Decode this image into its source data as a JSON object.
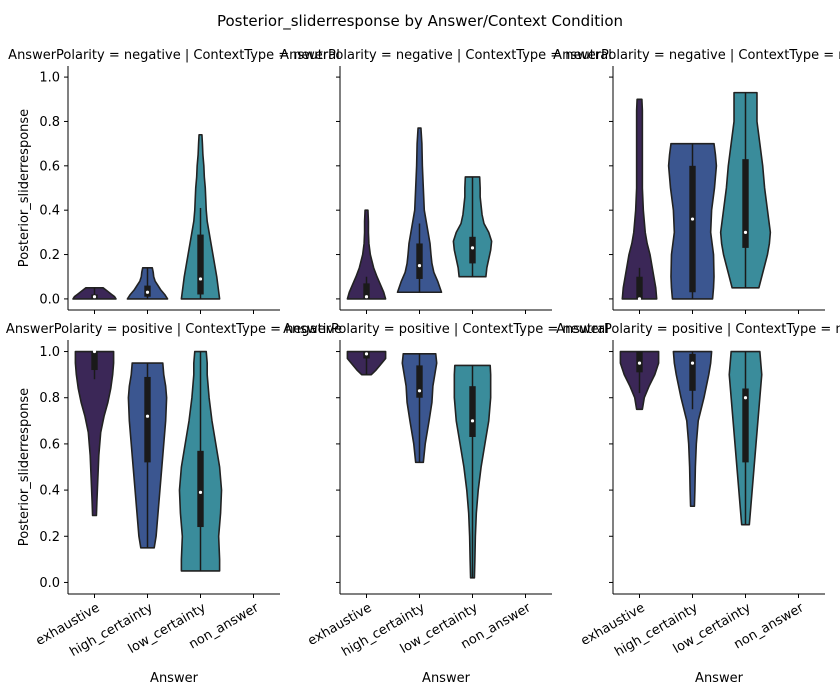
{
  "figure": {
    "suptitle": "Posterior_sliderresponse by Answer/Context Condition"
  },
  "categories": [
    "exhaustive",
    "high_certainty",
    "low_certainty",
    "non_answer"
  ],
  "colors": {
    "exhaustive": "#3b2757",
    "high_certainty": "#3b5690",
    "low_certainty": "#3a8c9b",
    "edge": "#222222",
    "box": "#1a1a1a"
  },
  "axes": {
    "ylabel": "Posterior_sliderresponse",
    "xlabel": "Answer",
    "yticks": [
      "0.0",
      "0.2",
      "0.4",
      "0.6",
      "0.8",
      "1.0"
    ],
    "ylim": [
      -0.05,
      1.05
    ]
  },
  "chart_data": [
    {
      "type": "violin",
      "title": "AnswerPolarity = negative | ContextType = neutral",
      "violins": [
        {
          "category": "exhaustive",
          "min": 0.0,
          "max": 0.05,
          "q1": 0.0,
          "median": 0.01,
          "q3": 0.02,
          "profile": [
            [
              0.0,
              0.45
            ],
            [
              0.01,
              0.42
            ],
            [
              0.02,
              0.36
            ],
            [
              0.03,
              0.3
            ],
            [
              0.04,
              0.24
            ],
            [
              0.05,
              0.18
            ]
          ]
        },
        {
          "category": "high_certainty",
          "min": 0.0,
          "max": 0.14,
          "q1": 0.01,
          "median": 0.03,
          "q3": 0.06,
          "profile": [
            [
              0.0,
              0.42
            ],
            [
              0.02,
              0.36
            ],
            [
              0.04,
              0.28
            ],
            [
              0.06,
              0.22
            ],
            [
              0.08,
              0.16
            ],
            [
              0.1,
              0.13
            ],
            [
              0.12,
              0.12
            ],
            [
              0.14,
              0.1
            ]
          ]
        },
        {
          "category": "low_certainty",
          "min": 0.0,
          "max": 0.74,
          "q1": 0.02,
          "median": 0.09,
          "q3": 0.29,
          "whisker": [
            0.0,
            0.41
          ],
          "profile": [
            [
              0.0,
              0.4
            ],
            [
              0.05,
              0.37
            ],
            [
              0.1,
              0.34
            ],
            [
              0.15,
              0.3
            ],
            [
              0.2,
              0.26
            ],
            [
              0.25,
              0.22
            ],
            [
              0.3,
              0.18
            ],
            [
              0.35,
              0.14
            ],
            [
              0.4,
              0.12
            ],
            [
              0.45,
              0.11
            ],
            [
              0.5,
              0.1
            ],
            [
              0.55,
              0.08
            ],
            [
              0.6,
              0.07
            ],
            [
              0.65,
              0.05
            ],
            [
              0.7,
              0.04
            ],
            [
              0.74,
              0.03
            ]
          ]
        }
      ]
    },
    {
      "type": "violin",
      "title": "AnswerPolarity = negative | ContextType = neutral",
      "violins": [
        {
          "category": "exhaustive",
          "min": 0.0,
          "max": 0.4,
          "q1": 0.0,
          "median": 0.01,
          "q3": 0.07,
          "whisker": [
            0.0,
            0.1
          ],
          "profile": [
            [
              0.0,
              0.4
            ],
            [
              0.03,
              0.36
            ],
            [
              0.06,
              0.3
            ],
            [
              0.1,
              0.22
            ],
            [
              0.14,
              0.15
            ],
            [
              0.2,
              0.08
            ],
            [
              0.25,
              0.05
            ],
            [
              0.3,
              0.04
            ],
            [
              0.35,
              0.04
            ],
            [
              0.4,
              0.03
            ]
          ]
        },
        {
          "category": "high_certainty",
          "min": 0.03,
          "max": 0.77,
          "q1": 0.09,
          "median": 0.15,
          "q3": 0.25,
          "whisker": [
            0.03,
            0.34
          ],
          "profile": [
            [
              0.03,
              0.46
            ],
            [
              0.08,
              0.38
            ],
            [
              0.12,
              0.3
            ],
            [
              0.16,
              0.26
            ],
            [
              0.2,
              0.24
            ],
            [
              0.25,
              0.22
            ],
            [
              0.3,
              0.18
            ],
            [
              0.35,
              0.14
            ],
            [
              0.4,
              0.1
            ],
            [
              0.5,
              0.08
            ],
            [
              0.6,
              0.06
            ],
            [
              0.7,
              0.05
            ],
            [
              0.77,
              0.03
            ]
          ]
        },
        {
          "category": "low_certainty",
          "min": 0.1,
          "max": 0.55,
          "q1": 0.16,
          "median": 0.23,
          "q3": 0.28,
          "profile": [
            [
              0.1,
              0.28
            ],
            [
              0.14,
              0.3
            ],
            [
              0.18,
              0.34
            ],
            [
              0.22,
              0.38
            ],
            [
              0.26,
              0.4
            ],
            [
              0.3,
              0.34
            ],
            [
              0.34,
              0.24
            ],
            [
              0.38,
              0.2
            ],
            [
              0.42,
              0.18
            ],
            [
              0.46,
              0.16
            ],
            [
              0.5,
              0.16
            ],
            [
              0.55,
              0.15
            ]
          ]
        }
      ]
    },
    {
      "type": "violin",
      "title": "AnswerPolarity = negative | ContextType = neutral",
      "violins": [
        {
          "category": "exhaustive",
          "min": 0.0,
          "max": 0.9,
          "q1": 0.0,
          "median": 0.0,
          "q3": 0.1,
          "whisker": [
            0.0,
            0.14
          ],
          "profile": [
            [
              0.0,
              0.36
            ],
            [
              0.05,
              0.34
            ],
            [
              0.1,
              0.3
            ],
            [
              0.15,
              0.26
            ],
            [
              0.2,
              0.22
            ],
            [
              0.25,
              0.16
            ],
            [
              0.3,
              0.12
            ],
            [
              0.4,
              0.08
            ],
            [
              0.5,
              0.06
            ],
            [
              0.6,
              0.06
            ],
            [
              0.7,
              0.06
            ],
            [
              0.8,
              0.06
            ],
            [
              0.85,
              0.06
            ],
            [
              0.9,
              0.05
            ]
          ]
        },
        {
          "category": "high_certainty",
          "min": 0.0,
          "max": 0.7,
          "q1": 0.03,
          "median": 0.36,
          "q3": 0.6,
          "profile": [
            [
              0.0,
              0.42
            ],
            [
              0.05,
              0.44
            ],
            [
              0.1,
              0.45
            ],
            [
              0.2,
              0.44
            ],
            [
              0.3,
              0.38
            ],
            [
              0.4,
              0.4
            ],
            [
              0.5,
              0.46
            ],
            [
              0.6,
              0.5
            ],
            [
              0.65,
              0.48
            ],
            [
              0.7,
              0.45
            ]
          ]
        },
        {
          "category": "low_certainty",
          "min": 0.05,
          "max": 0.93,
          "q1": 0.23,
          "median": 0.3,
          "q3": 0.63,
          "profile": [
            [
              0.05,
              0.28
            ],
            [
              0.1,
              0.34
            ],
            [
              0.15,
              0.4
            ],
            [
              0.2,
              0.46
            ],
            [
              0.25,
              0.5
            ],
            [
              0.3,
              0.52
            ],
            [
              0.4,
              0.46
            ],
            [
              0.5,
              0.4
            ],
            [
              0.6,
              0.36
            ],
            [
              0.7,
              0.3
            ],
            [
              0.8,
              0.24
            ],
            [
              0.9,
              0.24
            ],
            [
              0.93,
              0.24
            ]
          ]
        }
      ]
    },
    {
      "type": "violin",
      "title": "AnswerPolarity = positive | ContextType = negative",
      "violins": [
        {
          "category": "exhaustive",
          "min": 0.29,
          "max": 1.0,
          "q1": 0.92,
          "median": 1.0,
          "q3": 1.0,
          "whisker": [
            0.88,
            1.0
          ],
          "profile": [
            [
              0.29,
              0.04
            ],
            [
              0.35,
              0.05
            ],
            [
              0.45,
              0.07
            ],
            [
              0.55,
              0.09
            ],
            [
              0.65,
              0.13
            ],
            [
              0.72,
              0.2
            ],
            [
              0.78,
              0.28
            ],
            [
              0.84,
              0.34
            ],
            [
              0.9,
              0.38
            ],
            [
              0.95,
              0.4
            ],
            [
              1.0,
              0.4
            ]
          ]
        },
        {
          "category": "high_certainty",
          "min": 0.15,
          "max": 0.95,
          "q1": 0.52,
          "median": 0.72,
          "q3": 0.89,
          "whisker": [
            0.15,
            0.95
          ],
          "profile": [
            [
              0.15,
              0.14
            ],
            [
              0.2,
              0.18
            ],
            [
              0.3,
              0.22
            ],
            [
              0.4,
              0.26
            ],
            [
              0.5,
              0.3
            ],
            [
              0.6,
              0.34
            ],
            [
              0.7,
              0.38
            ],
            [
              0.8,
              0.4
            ],
            [
              0.85,
              0.38
            ],
            [
              0.9,
              0.34
            ],
            [
              0.95,
              0.32
            ]
          ]
        },
        {
          "category": "low_certainty",
          "min": 0.05,
          "max": 1.0,
          "q1": 0.24,
          "median": 0.39,
          "q3": 0.57,
          "whisker": [
            0.05,
            1.0
          ],
          "profile": [
            [
              0.05,
              0.4
            ],
            [
              0.1,
              0.4
            ],
            [
              0.2,
              0.38
            ],
            [
              0.3,
              0.42
            ],
            [
              0.4,
              0.44
            ],
            [
              0.5,
              0.4
            ],
            [
              0.6,
              0.32
            ],
            [
              0.7,
              0.24
            ],
            [
              0.8,
              0.18
            ],
            [
              0.9,
              0.14
            ],
            [
              0.95,
              0.14
            ],
            [
              1.0,
              0.12
            ]
          ]
        }
      ]
    },
    {
      "type": "violin",
      "title": "AnswerPolarity = positive | ContextType = neutral",
      "violins": [
        {
          "category": "exhaustive",
          "min": 0.9,
          "max": 1.0,
          "q1": 0.97,
          "median": 0.99,
          "q3": 1.0,
          "profile": [
            [
              0.9,
              0.1
            ],
            [
              0.92,
              0.2
            ],
            [
              0.95,
              0.32
            ],
            [
              0.97,
              0.4
            ],
            [
              1.0,
              0.4
            ]
          ]
        },
        {
          "category": "high_certainty",
          "min": 0.52,
          "max": 0.99,
          "q1": 0.8,
          "median": 0.83,
          "q3": 0.94,
          "profile": [
            [
              0.52,
              0.08
            ],
            [
              0.6,
              0.12
            ],
            [
              0.7,
              0.2
            ],
            [
              0.78,
              0.26
            ],
            [
              0.85,
              0.28
            ],
            [
              0.9,
              0.32
            ],
            [
              0.95,
              0.36
            ],
            [
              0.99,
              0.34
            ]
          ]
        },
        {
          "category": "low_certainty",
          "min": 0.02,
          "max": 0.94,
          "q1": 0.63,
          "median": 0.7,
          "q3": 0.85,
          "whisker": [
            0.02,
            0.94
          ],
          "profile": [
            [
              0.02,
              0.04
            ],
            [
              0.1,
              0.05
            ],
            [
              0.2,
              0.06
            ],
            [
              0.3,
              0.08
            ],
            [
              0.4,
              0.12
            ],
            [
              0.5,
              0.18
            ],
            [
              0.6,
              0.26
            ],
            [
              0.7,
              0.34
            ],
            [
              0.8,
              0.38
            ],
            [
              0.9,
              0.38
            ],
            [
              0.94,
              0.37
            ]
          ]
        }
      ]
    },
    {
      "type": "violin",
      "title": "AnswerPolarity = positive | ContextType = neutral",
      "violins": [
        {
          "category": "exhaustive",
          "min": 0.75,
          "max": 1.0,
          "q1": 0.91,
          "median": 0.95,
          "q3": 1.0,
          "whisker": [
            0.82,
            1.0
          ],
          "profile": [
            [
              0.75,
              0.06
            ],
            [
              0.8,
              0.1
            ],
            [
              0.85,
              0.2
            ],
            [
              0.9,
              0.32
            ],
            [
              0.95,
              0.4
            ],
            [
              1.0,
              0.4
            ]
          ]
        },
        {
          "category": "high_certainty",
          "min": 0.33,
          "max": 1.0,
          "q1": 0.83,
          "median": 0.95,
          "q3": 0.99,
          "whisker": [
            0.75,
            1.0
          ],
          "profile": [
            [
              0.33,
              0.04
            ],
            [
              0.4,
              0.05
            ],
            [
              0.5,
              0.06
            ],
            [
              0.6,
              0.08
            ],
            [
              0.7,
              0.12
            ],
            [
              0.8,
              0.24
            ],
            [
              0.9,
              0.34
            ],
            [
              0.95,
              0.38
            ],
            [
              1.0,
              0.4
            ]
          ]
        },
        {
          "category": "low_certainty",
          "min": 0.25,
          "max": 1.0,
          "q1": 0.52,
          "median": 0.8,
          "q3": 0.84,
          "whisker": [
            0.25,
            1.0
          ],
          "profile": [
            [
              0.25,
              0.08
            ],
            [
              0.3,
              0.1
            ],
            [
              0.4,
              0.14
            ],
            [
              0.5,
              0.18
            ],
            [
              0.6,
              0.22
            ],
            [
              0.7,
              0.26
            ],
            [
              0.8,
              0.3
            ],
            [
              0.9,
              0.34
            ],
            [
              0.95,
              0.32
            ],
            [
              1.0,
              0.3
            ]
          ]
        }
      ]
    }
  ]
}
